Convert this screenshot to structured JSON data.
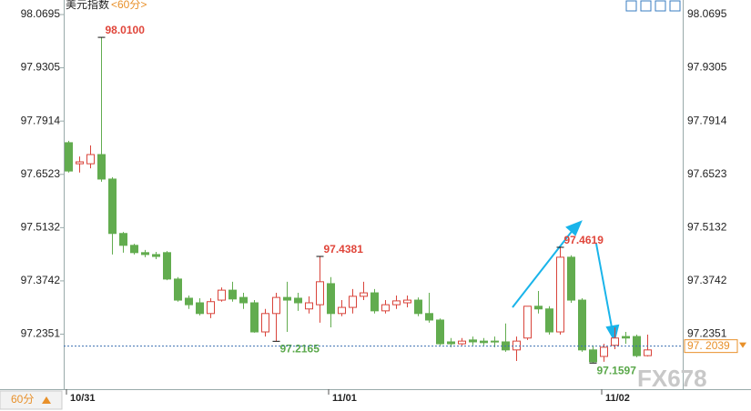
{
  "chart_data": {
    "type": "candlestick",
    "title": "美元指数",
    "period": "<60分>",
    "period_button": "60分",
    "watermark": "FX678",
    "up_color": "#d9443b",
    "down_color": "#62ac4f",
    "ylim": [
      97.0915,
      98.1075
    ],
    "yticks": [
      98.0695,
      97.9305,
      97.7914,
      97.6523,
      97.5132,
      97.3742,
      97.2351
    ],
    "categories": [
      "10/31",
      null,
      null,
      null,
      null,
      null,
      null,
      null,
      null,
      null,
      null,
      null,
      null,
      null,
      null,
      null,
      null,
      null,
      null,
      null,
      null,
      null,
      null,
      null,
      "11/01",
      null,
      null,
      null,
      null,
      null,
      null,
      null,
      null,
      null,
      null,
      null,
      null,
      null,
      null,
      null,
      null,
      null,
      null,
      null,
      null,
      null,
      null,
      null,
      null,
      "11/02",
      null,
      null,
      null,
      null
    ],
    "open": [
      97.735,
      97.68,
      97.68,
      97.704,
      97.64,
      97.498,
      97.467,
      97.448,
      97.443,
      97.448,
      97.379,
      97.329,
      97.317,
      97.289,
      97.324,
      97.35,
      97.331,
      97.317,
      97.241,
      97.289,
      97.331,
      97.329,
      97.301,
      97.312,
      97.367,
      97.289,
      97.305,
      97.334,
      97.343,
      97.296,
      97.312,
      97.317,
      97.324,
      97.289,
      97.272,
      97.215,
      97.21,
      97.22,
      97.217,
      97.217,
      97.215,
      97.194,
      97.225,
      97.308,
      97.301,
      97.241,
      97.436,
      97.324,
      97.194,
      97.177,
      97.206,
      97.229,
      97.229,
      97.179
    ],
    "high": [
      97.74,
      97.699,
      97.728,
      98.01,
      97.645,
      97.502,
      97.471,
      97.455,
      97.45,
      97.452,
      97.384,
      97.336,
      97.329,
      97.329,
      97.357,
      97.372,
      97.343,
      97.324,
      97.301,
      97.343,
      97.372,
      97.343,
      97.334,
      97.4381,
      97.384,
      97.324,
      97.353,
      97.372,
      97.353,
      97.324,
      97.336,
      97.336,
      97.331,
      97.343,
      97.276,
      97.225,
      97.225,
      97.229,
      97.225,
      97.229,
      97.263,
      97.229,
      97.308,
      97.348,
      97.308,
      97.4619,
      97.441,
      97.329,
      97.206,
      97.21,
      97.253,
      97.241,
      97.234,
      97.234
    ],
    "low": [
      97.657,
      97.657,
      97.668,
      97.633,
      97.443,
      97.448,
      97.443,
      97.436,
      97.431,
      97.376,
      97.32,
      97.301,
      97.284,
      97.277,
      97.32,
      97.32,
      97.301,
      97.239,
      97.229,
      97.2165,
      97.241,
      97.296,
      97.289,
      97.265,
      97.253,
      97.282,
      97.289,
      97.324,
      97.289,
      97.289,
      97.301,
      97.305,
      97.282,
      97.265,
      97.206,
      97.201,
      97.206,
      97.206,
      97.206,
      97.201,
      97.189,
      97.165,
      97.22,
      97.289,
      97.234,
      97.234,
      97.317,
      97.189,
      97.1597,
      97.163,
      97.196,
      97.21,
      97.175,
      97.177
    ],
    "close": [
      97.661,
      97.685,
      97.704,
      97.64,
      97.498,
      97.467,
      97.448,
      97.443,
      97.438,
      97.379,
      97.324,
      97.312,
      97.289,
      97.32,
      97.35,
      97.327,
      97.317,
      97.241,
      97.289,
      97.331,
      97.324,
      97.317,
      97.317,
      97.372,
      97.289,
      97.305,
      97.334,
      97.343,
      97.296,
      97.312,
      97.322,
      97.324,
      97.289,
      97.272,
      97.21,
      97.21,
      97.217,
      97.215,
      97.213,
      97.215,
      97.194,
      97.217,
      97.308,
      97.301,
      97.241,
      97.436,
      97.324,
      97.194,
      97.163,
      97.201,
      97.225,
      97.225,
      97.179,
      97.194
    ],
    "annotations": [
      {
        "index": 3,
        "value": 98.01,
        "label": "98.0100",
        "kind": "high"
      },
      {
        "index": 23,
        "value": 97.4381,
        "label": "97.4381",
        "kind": "high"
      },
      {
        "index": 19,
        "value": 97.2165,
        "label": "97.2165",
        "kind": "low"
      },
      {
        "index": 45,
        "value": 97.4619,
        "label": "97.4619",
        "kind": "high"
      },
      {
        "index": 48,
        "value": 97.1597,
        "label": "97.1597",
        "kind": "low"
      }
    ],
    "last_price": {
      "value": 97.2039,
      "label": "97. 2039"
    }
  }
}
